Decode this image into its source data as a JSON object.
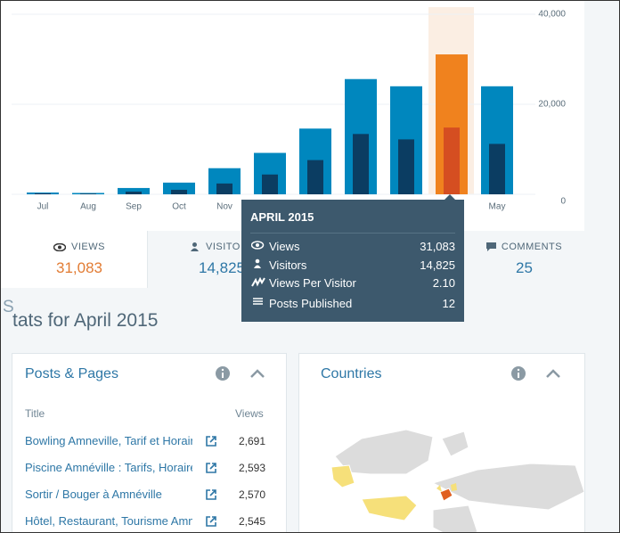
{
  "chart_data": {
    "type": "bar",
    "categories": [
      "Jul",
      "Aug",
      "Sep",
      "Oct",
      "Nov",
      null,
      null,
      null,
      null,
      null,
      "May"
    ],
    "series": [
      {
        "name": "Views",
        "color": "#0087be",
        "colors": [
          "#0087be",
          "#0087be",
          "#0087be",
          "#0087be",
          "#0087be",
          "#0087be",
          "#0087be",
          "#0087be",
          "#0087be",
          "#f0821e",
          "#0087be"
        ],
        "values": [
          400,
          300,
          1400,
          2600,
          5800,
          9200,
          14600,
          25600,
          24000,
          31083,
          24000
        ],
        "value_labels": [
          null,
          null,
          null,
          null,
          null,
          null,
          null,
          null,
          null,
          "31,083",
          null
        ]
      },
      {
        "name": "Visitors",
        "color": "#0b3d62",
        "colors": [
          "#0b3d62",
          "#0b3d62",
          "#0b3d62",
          "#0b3d62",
          "#0b3d62",
          "#0b3d62",
          "#0b3d62",
          "#0b3d62",
          "#0b3d62",
          "#d54e21",
          "#0b3d62"
        ],
        "values": [
          200,
          150,
          600,
          1000,
          2400,
          4400,
          7600,
          13400,
          12200,
          14825,
          11200
        ],
        "value_labels": [
          null,
          null,
          null,
          null,
          null,
          null,
          null,
          null,
          null,
          "14,825",
          null
        ]
      }
    ],
    "ylim": [
      0,
      40000
    ],
    "yticks": [
      0,
      {
        "value": 20000,
        "label": "20,000"
      },
      {
        "value": 40000,
        "label": "40,000"
      }
    ],
    "grid": true
  },
  "tooltip": {
    "title": "APRIL 2015",
    "rows": [
      {
        "label": "Views Per Visitor",
        "value": "2.10"
      },
      {
        "label": "Posts Published",
        "value": "12"
      }
    ]
  },
  "tabs": [
    {
      "label": "VIEWS",
      "value": "31,083"
    },
    {
      "label": "VISITO",
      "value": "14,825"
    },
    {
      "label": "COMMENTS",
      "value": "25"
    }
  ],
  "heading": {
    "cut": "S",
    "text": "tats for April 2015"
  },
  "posts": {
    "title": "Posts & Pages",
    "col_title": "Title",
    "col_views": "Views",
    "rows": [
      [
        "Bowling Amneville, Tarif et Horair",
        "2,691"
      ],
      [
        "Piscine Amnéville : Tarifs, Horaire",
        "2,593"
      ],
      [
        "Sortir / Bouger à Amnéville",
        "2,570"
      ],
      [
        "Hôtel, Restaurant, Tourisme Amn",
        "2,545"
      ]
    ]
  },
  "countries": {
    "title": "Countries"
  }
}
